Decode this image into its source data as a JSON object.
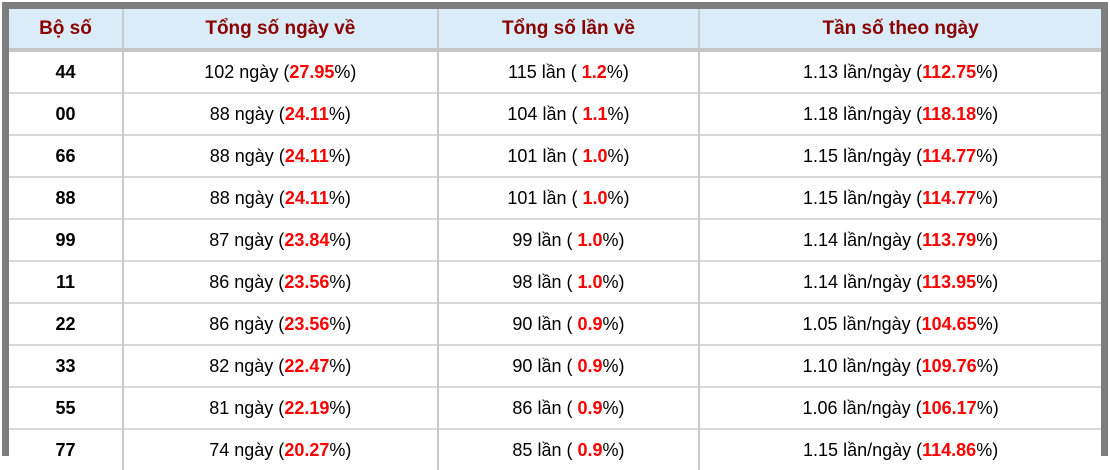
{
  "colors": {
    "outer_border": "#7e7e7e",
    "header_bg": "#d9ecf7",
    "header_text": "#8b0000",
    "highlight_red": "#ff0000",
    "body_text": "#000000",
    "grid_line": "#c9c9c9"
  },
  "chart_data": {
    "type": "table",
    "title": "",
    "columns": [
      "Bộ số",
      "Tổng số ngày về",
      "Tổng số lần về",
      "Tần số theo ngày"
    ],
    "rows": [
      [
        "44",
        "102 ngày (27.95%)",
        "115 lần ( 1.2%)",
        "1.13 lần/ngày (112.75%)"
      ],
      [
        "00",
        "88 ngày (24.11%)",
        "104 lần ( 1.1%)",
        "1.18 lần/ngày (118.18%)"
      ],
      [
        "66",
        "88 ngày (24.11%)",
        "101 lần ( 1.0%)",
        "1.15 lần/ngày (114.77%)"
      ],
      [
        "88",
        "88 ngày (24.11%)",
        "101 lần ( 1.0%)",
        "1.15 lần/ngày (114.77%)"
      ],
      [
        "99",
        "87 ngày (23.84%)",
        "99 lần ( 1.0%)",
        "1.14 lần/ngày (113.79%)"
      ],
      [
        "11",
        "86 ngày (23.56%)",
        "98 lần ( 1.0%)",
        "1.14 lần/ngày (113.95%)"
      ],
      [
        "22",
        "86 ngày (23.56%)",
        "90 lần ( 0.9%)",
        "1.05 lần/ngày (104.65%)"
      ],
      [
        "33",
        "82 ngày (22.47%)",
        "90 lần ( 0.9%)",
        "1.10 lần/ngày (109.76%)"
      ],
      [
        "55",
        "81 ngày (22.19%)",
        "86 lần ( 0.9%)",
        "1.06 lần/ngày (106.17%)"
      ],
      [
        "77",
        "74 ngày (20.27%)",
        "85 lần ( 0.9%)",
        "1.15 lần/ngày (114.86%)"
      ]
    ]
  },
  "table": {
    "headers": [
      "Bộ số",
      "Tổng số ngày về",
      "Tổng số lần về",
      "Tần số theo ngày"
    ],
    "rows": [
      {
        "number": "44",
        "days": {
          "pre": "102 ngày (",
          "pct": "27.95",
          "suf": "%)"
        },
        "times": {
          "pre": "115 lần ( ",
          "pct": "1.2",
          "suf": "%)"
        },
        "freq": {
          "pre": "1.13 lần/ngày (",
          "pct": "112.75",
          "suf": "%)"
        }
      },
      {
        "number": "00",
        "days": {
          "pre": "88 ngày (",
          "pct": "24.11",
          "suf": "%)"
        },
        "times": {
          "pre": "104 lần ( ",
          "pct": "1.1",
          "suf": "%)"
        },
        "freq": {
          "pre": "1.18 lần/ngày (",
          "pct": "118.18",
          "suf": "%)"
        }
      },
      {
        "number": "66",
        "days": {
          "pre": "88 ngày (",
          "pct": "24.11",
          "suf": "%)"
        },
        "times": {
          "pre": "101 lần ( ",
          "pct": "1.0",
          "suf": "%)"
        },
        "freq": {
          "pre": "1.15 lần/ngày (",
          "pct": "114.77",
          "suf": "%)"
        }
      },
      {
        "number": "88",
        "days": {
          "pre": "88 ngày (",
          "pct": "24.11",
          "suf": "%)"
        },
        "times": {
          "pre": "101 lần ( ",
          "pct": "1.0",
          "suf": "%)"
        },
        "freq": {
          "pre": "1.15 lần/ngày (",
          "pct": "114.77",
          "suf": "%)"
        }
      },
      {
        "number": "99",
        "days": {
          "pre": "87 ngày (",
          "pct": "23.84",
          "suf": "%)"
        },
        "times": {
          "pre": "99 lần ( ",
          "pct": "1.0",
          "suf": "%)"
        },
        "freq": {
          "pre": "1.14 lần/ngày (",
          "pct": "113.79",
          "suf": "%)"
        }
      },
      {
        "number": "11",
        "days": {
          "pre": "86 ngày (",
          "pct": "23.56",
          "suf": "%)"
        },
        "times": {
          "pre": "98 lần ( ",
          "pct": "1.0",
          "suf": "%)"
        },
        "freq": {
          "pre": "1.14 lần/ngày (",
          "pct": "113.95",
          "suf": "%)"
        }
      },
      {
        "number": "22",
        "days": {
          "pre": "86 ngày (",
          "pct": "23.56",
          "suf": "%)"
        },
        "times": {
          "pre": "90 lần ( ",
          "pct": "0.9",
          "suf": "%)"
        },
        "freq": {
          "pre": "1.05 lần/ngày (",
          "pct": "104.65",
          "suf": "%)"
        }
      },
      {
        "number": "33",
        "days": {
          "pre": "82 ngày (",
          "pct": "22.47",
          "suf": "%)"
        },
        "times": {
          "pre": "90 lần ( ",
          "pct": "0.9",
          "suf": "%)"
        },
        "freq": {
          "pre": "1.10 lần/ngày (",
          "pct": "109.76",
          "suf": "%)"
        }
      },
      {
        "number": "55",
        "days": {
          "pre": "81 ngày (",
          "pct": "22.19",
          "suf": "%)"
        },
        "times": {
          "pre": "86 lần ( ",
          "pct": "0.9",
          "suf": "%)"
        },
        "freq": {
          "pre": "1.06 lần/ngày (",
          "pct": "106.17",
          "suf": "%)"
        }
      },
      {
        "number": "77",
        "days": {
          "pre": "74 ngày (",
          "pct": "20.27",
          "suf": "%)"
        },
        "times": {
          "pre": "85 lần ( ",
          "pct": "0.9",
          "suf": "%)"
        },
        "freq": {
          "pre": "1.15 lần/ngày (",
          "pct": "114.86",
          "suf": "%)"
        }
      }
    ]
  }
}
